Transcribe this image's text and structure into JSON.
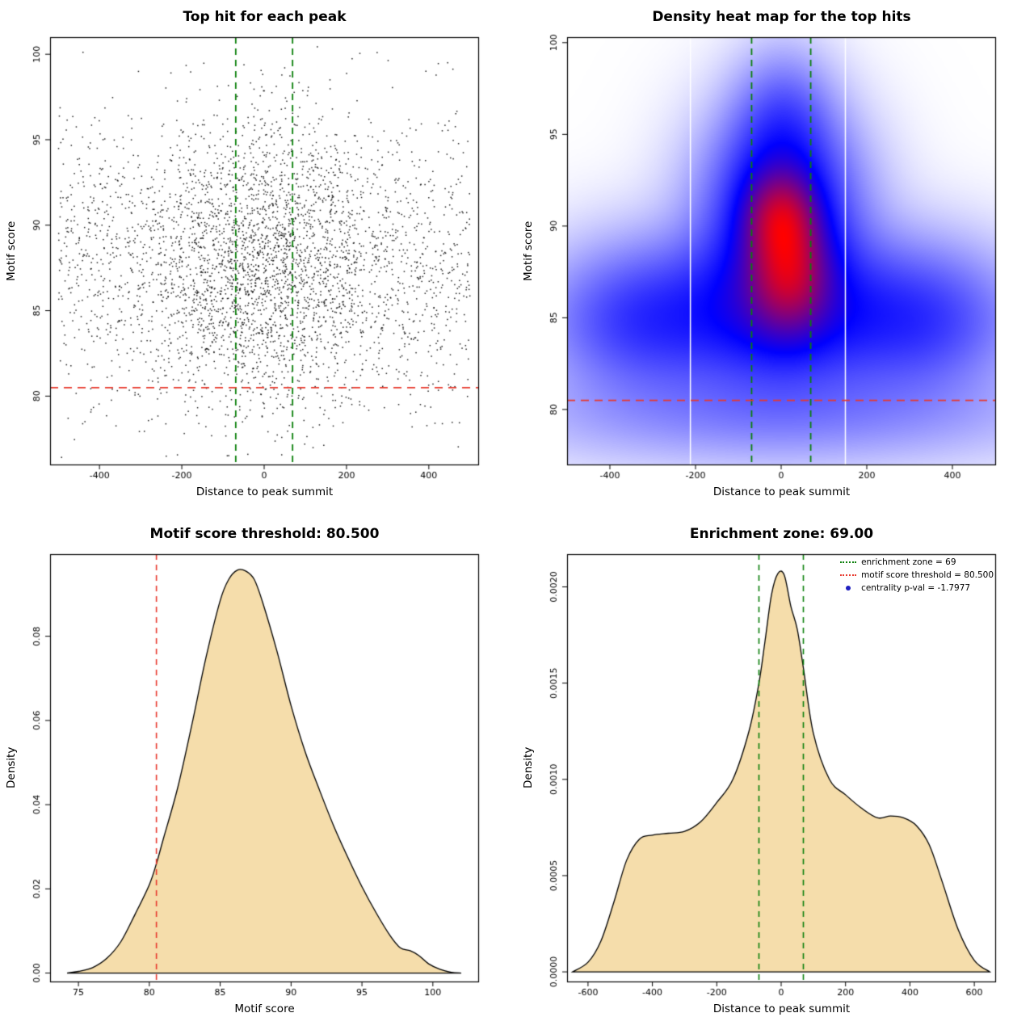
{
  "page": {
    "background": "#ffffff"
  },
  "chart_data": [
    {
      "type": "scatter",
      "title": "Top hit for each peak",
      "xlabel": "Distance to peak summit",
      "ylabel": "Motif score",
      "xlim": [
        -520,
        520
      ],
      "ylim": [
        76.0,
        101.0
      ],
      "xticks": [
        -400,
        -200,
        0,
        200,
        400
      ],
      "yticks": [
        80,
        85,
        90,
        95,
        100
      ],
      "points": {
        "n": 3800,
        "seed": 12345,
        "center_frac": 0.5,
        "x_sigma": 150,
        "y_mean": 87.7,
        "y_sigma": 4.2,
        "y_min": 76.4,
        "y_max": 100.6
      },
      "enrichment_zone": 69,
      "threshold": 80.5,
      "zone_color": "#0a7f0a",
      "threshold_color": "#e8382c",
      "point_color": "#000000"
    },
    {
      "type": "heatmap",
      "title": "Density heat map for the top hits",
      "xlabel": "Distance to peak summit",
      "ylabel": "Motif score",
      "xlim": [
        -500,
        500
      ],
      "ylim": [
        77.0,
        100.3
      ],
      "xticks": [
        -400,
        -200,
        0,
        200,
        400
      ],
      "yticks": [
        80,
        85,
        90,
        95,
        100
      ],
      "enrichment_zone": 69,
      "threshold": 80.5,
      "zone_color": "#0a7f0a",
      "threshold_color": "#e8382c",
      "gamma": 0.55,
      "white_lines": [
        -212,
        150
      ],
      "blobs": [
        {
          "w": 1.0,
          "cx": 0,
          "cy": 90.4,
          "sx": 52,
          "sy": 1.6
        },
        {
          "w": 0.95,
          "cx": 18,
          "cy": 87.4,
          "sx": 58,
          "sy": 1.9
        },
        {
          "w": 0.55,
          "cx": 0,
          "cy": 88.8,
          "sx": 115,
          "sy": 3.6
        },
        {
          "w": 0.5,
          "cx": 0,
          "cy": 85.2,
          "sx": 230,
          "sy": 2.6
        },
        {
          "w": 0.35,
          "cx": 0,
          "cy": 92.5,
          "sx": 95,
          "sy": 2.6
        },
        {
          "w": 0.28,
          "cx": -340,
          "cy": 84.8,
          "sx": 130,
          "sy": 2.4
        },
        {
          "w": 0.28,
          "cx": 340,
          "cy": 84.8,
          "sx": 130,
          "sy": 2.4
        },
        {
          "w": 0.16,
          "cx": 0,
          "cy": 79.8,
          "sx": 380,
          "sy": 1.7
        },
        {
          "w": 0.22,
          "cx": 5,
          "cy": 96.0,
          "sx": 70,
          "sy": 2.2
        }
      ]
    },
    {
      "type": "area",
      "title": "Motif score threshold: 80.500",
      "xlabel": "Motif score",
      "ylabel": "Density",
      "xlim": [
        73.0,
        103.2
      ],
      "ylim": [
        -0.002,
        0.0995
      ],
      "xticks": [
        75,
        80,
        85,
        90,
        95,
        100
      ],
      "yticks": [
        0,
        0.02,
        0.04,
        0.06,
        0.08
      ],
      "ytick_labels": [
        "0.00",
        "0.02",
        "0.04",
        "0.06",
        "0.08"
      ],
      "x": [
        74.2,
        75,
        76,
        77,
        78,
        79,
        80,
        80.5,
        81,
        82,
        83,
        84,
        85,
        85.6,
        86.2,
        86.8,
        87.4,
        88,
        89,
        90,
        91,
        92,
        93,
        94,
        95,
        96,
        97,
        97.7,
        98.4,
        99,
        99.7,
        100.5,
        101.3,
        102
      ],
      "y": [
        0,
        0.0004,
        0.0013,
        0.0035,
        0.0075,
        0.014,
        0.021,
        0.026,
        0.032,
        0.044,
        0.059,
        0.075,
        0.0885,
        0.0935,
        0.0957,
        0.0955,
        0.0935,
        0.088,
        0.0765,
        0.0635,
        0.0525,
        0.0435,
        0.035,
        0.0275,
        0.0205,
        0.0143,
        0.0088,
        0.006,
        0.0053,
        0.0042,
        0.0022,
        0.0009,
        0.0002,
        0
      ],
      "fill": "#f5ddab",
      "threshold": 80.5,
      "threshold_color": "#e8382c"
    },
    {
      "type": "area",
      "title": "Enrichment zone: 69.00",
      "xlabel": "Distance to peak summit",
      "ylabel": "Density",
      "xlim": [
        -665,
        665
      ],
      "ylim": [
        -5e-05,
        0.00217
      ],
      "xticks": [
        -600,
        -400,
        -200,
        0,
        200,
        400,
        600
      ],
      "yticks": [
        0,
        0.0005,
        0.001,
        0.0015,
        0.002
      ],
      "ytick_labels": [
        "0.0000",
        "0.0005",
        "0.0010",
        "0.0015",
        "0.0020"
      ],
      "x": [
        -648,
        -600,
        -560,
        -520,
        -480,
        -440,
        -400,
        -350,
        -300,
        -250,
        -200,
        -150,
        -100,
        -69,
        -50,
        -30,
        -10,
        10,
        30,
        50,
        69,
        100,
        150,
        200,
        250,
        300,
        340,
        380,
        420,
        460,
        500,
        550,
        600,
        648
      ],
      "y": [
        0,
        5e-05,
        0.00016,
        0.00036,
        0.00058,
        0.00069,
        0.00071,
        0.00072,
        0.00073,
        0.00078,
        0.00088,
        0.001,
        0.00125,
        0.0015,
        0.00172,
        0.00196,
        0.00207,
        0.00206,
        0.0019,
        0.00178,
        0.00158,
        0.00124,
        0.001,
        0.00092,
        0.00085,
        0.0008,
        0.00081,
        0.0008,
        0.00076,
        0.00066,
        0.00047,
        0.00022,
        6e-05,
        0
      ],
      "fill": "#f5ddab",
      "enrichment_zone": 69,
      "zone_color": "#0a7f0a",
      "legend": [
        {
          "label": "enrichment zone = 69",
          "symbol": "dotted-line",
          "color": "#0a7f0a"
        },
        {
          "label": "motif score threshold = 80.500",
          "symbol": "dotted-line",
          "color": "#e8382c"
        },
        {
          "label": "centrality p-val = -1.7977",
          "symbol": "dot",
          "color": "#2020c0"
        }
      ]
    }
  ]
}
